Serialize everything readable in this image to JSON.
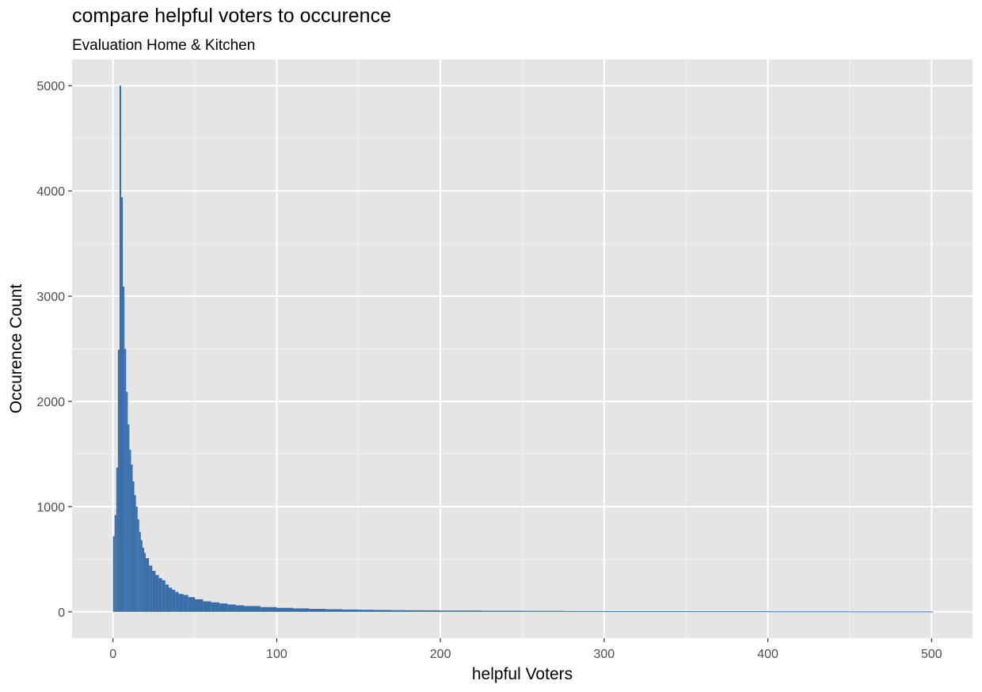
{
  "chart_data": {
    "type": "bar",
    "title": "compare helpful voters to occurence",
    "subtitle": "Evaluation Home & Kitchen",
    "xlabel": "helpful Voters",
    "ylabel": "Occurence Count",
    "xlim": [
      -25,
      525
    ],
    "ylim": [
      -250,
      5250
    ],
    "x_ticks": [
      0,
      100,
      200,
      300,
      400,
      500
    ],
    "y_ticks": [
      0,
      1000,
      2000,
      3000,
      4000,
      5000
    ],
    "bar_color": "#3A6EA8",
    "panel_background": "#E5E5E5",
    "grid": true,
    "x": [
      0,
      1,
      2,
      3,
      4,
      5,
      6,
      7,
      8,
      9,
      10,
      11,
      12,
      13,
      14,
      15,
      16,
      17,
      18,
      19,
      20,
      22,
      24,
      26,
      28,
      30,
      32,
      34,
      36,
      38,
      40,
      43,
      46,
      50,
      55,
      60,
      65,
      70,
      75,
      80,
      90,
      100,
      110,
      120,
      130,
      140,
      150,
      160,
      170,
      180,
      190,
      200,
      225,
      250,
      275,
      300,
      350,
      400,
      450,
      500
    ],
    "values": [
      720,
      920,
      1370,
      2490,
      5000,
      3940,
      3090,
      2500,
      2090,
      1780,
      1540,
      1400,
      1240,
      1110,
      1000,
      880,
      760,
      680,
      610,
      560,
      510,
      440,
      390,
      350,
      320,
      300,
      260,
      230,
      210,
      190,
      170,
      160,
      140,
      120,
      100,
      90,
      80,
      70,
      62,
      55,
      45,
      38,
      33,
      28,
      25,
      22,
      20,
      18,
      16,
      15,
      14,
      12,
      10,
      9,
      7,
      6,
      5,
      4,
      3,
      3
    ]
  }
}
